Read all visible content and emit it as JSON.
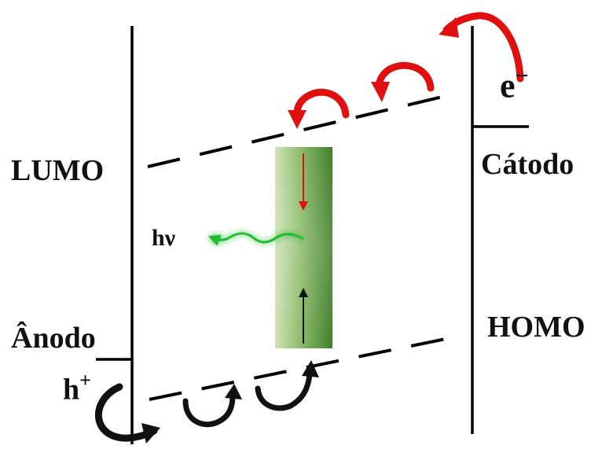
{
  "labels": {
    "lumo": "LUMO",
    "homo": "HOMO",
    "anode": "Ânodo",
    "cathode": "Cátodo",
    "photon": "hν",
    "hole_base": "h",
    "hole_sup": "+",
    "electron_base": "e",
    "electron_sup": "−"
  },
  "colors": {
    "electron_arrow": "#e01010",
    "hole_arrow": "#111111",
    "photon_wave": "#22bb33",
    "recombination_zone": "#5a9a3a",
    "line": "#000000"
  },
  "icons": {
    "electron_hop": "curved-arrow-red",
    "hole_hop": "curved-arrow-black",
    "emission": "wavy-arrow-green"
  }
}
